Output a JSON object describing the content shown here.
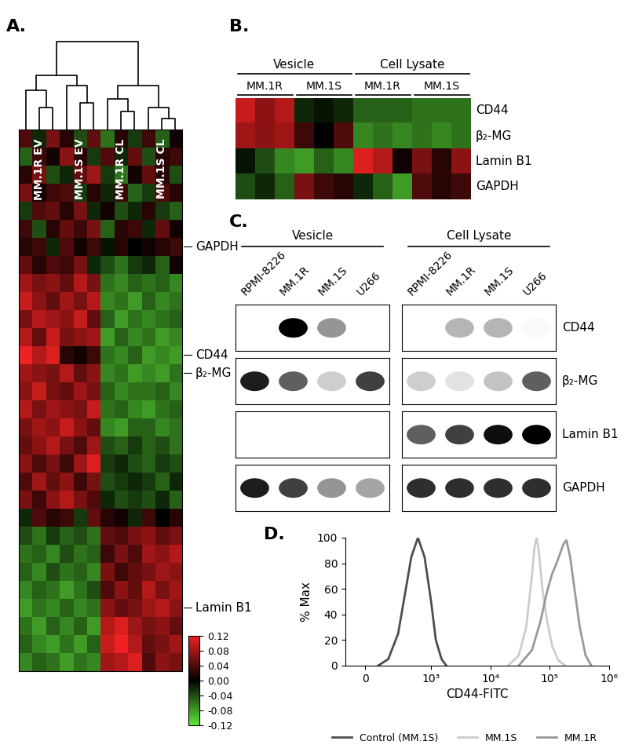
{
  "chart_data": [
    {
      "type": "heatmap",
      "title": "A.",
      "column_groups": [
        {
          "name": "MM.1R EV",
          "columns": 3
        },
        {
          "name": "MM.1S EV",
          "columns": 3
        },
        {
          "name": "MM.1R CL",
          "columns": 3
        },
        {
          "name": "MM.1S CL",
          "columns": 3
        }
      ],
      "row_labels": [
        null,
        null,
        null,
        null,
        null,
        null,
        "GAPDH",
        null,
        null,
        null,
        null,
        null,
        "CD44",
        "β₂-MG",
        null,
        null,
        null,
        null,
        null,
        null,
        null,
        null,
        null,
        null,
        null,
        null,
        "Lamin B1",
        null,
        null,
        null
      ],
      "cells": [
        [
          0.04,
          -0.02,
          0.06,
          0.02,
          -0.04,
          0.05,
          -0.06,
          0.02,
          -0.03,
          0.03,
          -0.05,
          0.01
        ],
        [
          -0.05,
          0.03,
          0.01,
          0.07,
          0.02,
          -0.03,
          0.04,
          -0.02,
          0.05,
          -0.04,
          0.02,
          0.03
        ],
        [
          0.02,
          0.06,
          -0.04,
          -0.02,
          0.05,
          0.08,
          -0.03,
          -0.06,
          0.01,
          0.05,
          0.02,
          -0.04
        ],
        [
          0.06,
          0.01,
          0.03,
          0.04,
          -0.03,
          0.02,
          -0.02,
          0.03,
          -0.05,
          -0.03,
          0.04,
          0.02
        ],
        [
          -0.03,
          0.04,
          0.05,
          0.02,
          0.06,
          -0.02,
          0.01,
          -0.04,
          -0.02,
          0.02,
          -0.03,
          -0.05
        ],
        [
          0.03,
          -0.04,
          0.02,
          0.05,
          0.03,
          0.06,
          -0.05,
          0.02,
          0.03,
          -0.02,
          0.05,
          0.01
        ],
        [
          0.02,
          0.03,
          -0.02,
          0.04,
          0.01,
          0.03,
          -0.01,
          0.02,
          0.0,
          0.01,
          0.02,
          0.03
        ],
        [
          0.05,
          0.02,
          0.04,
          0.03,
          0.06,
          -0.02,
          -0.04,
          -0.06,
          -0.03,
          -0.02,
          -0.05,
          0.01
        ],
        [
          0.08,
          0.06,
          0.07,
          0.05,
          0.09,
          0.06,
          -0.06,
          -0.07,
          -0.05,
          -0.06,
          -0.05,
          -0.07
        ],
        [
          0.1,
          0.07,
          0.05,
          0.08,
          0.06,
          0.09,
          -0.07,
          -0.06,
          -0.08,
          -0.05,
          -0.07,
          -0.06
        ],
        [
          0.06,
          0.09,
          0.08,
          0.07,
          0.1,
          0.05,
          -0.05,
          -0.08,
          -0.06,
          -0.07,
          -0.06,
          -0.05
        ],
        [
          0.09,
          0.05,
          0.1,
          0.06,
          0.07,
          0.08,
          -0.08,
          -0.05,
          -0.07,
          -0.06,
          -0.08,
          -0.07
        ],
        [
          0.12,
          0.09,
          0.11,
          0.02,
          0.01,
          0.03,
          -0.06,
          -0.07,
          -0.05,
          -0.08,
          -0.07,
          -0.08
        ],
        [
          0.08,
          0.07,
          0.06,
          0.09,
          0.05,
          0.07,
          -0.07,
          -0.06,
          -0.08,
          -0.07,
          -0.08,
          -0.06
        ],
        [
          0.07,
          0.1,
          0.06,
          0.05,
          0.08,
          0.06,
          -0.05,
          -0.07,
          -0.06,
          -0.06,
          -0.05,
          -0.07
        ],
        [
          0.09,
          0.06,
          0.08,
          0.07,
          0.06,
          0.1,
          -0.06,
          -0.05,
          -0.07,
          -0.08,
          -0.06,
          -0.05
        ],
        [
          0.06,
          0.08,
          0.07,
          0.1,
          0.07,
          0.05,
          -0.07,
          -0.08,
          -0.05,
          -0.05,
          -0.07,
          -0.06
        ],
        [
          0.05,
          0.07,
          0.09,
          0.06,
          0.04,
          0.08,
          -0.04,
          -0.05,
          -0.03,
          -0.05,
          -0.04,
          -0.06
        ],
        [
          0.07,
          0.04,
          0.06,
          0.03,
          0.08,
          0.11,
          -0.03,
          -0.02,
          -0.04,
          -0.05,
          -0.03,
          -0.04
        ],
        [
          0.04,
          0.08,
          0.05,
          0.07,
          0.03,
          0.06,
          -0.04,
          -0.03,
          -0.02,
          -0.03,
          -0.05,
          -0.02
        ],
        [
          0.06,
          0.03,
          0.07,
          0.09,
          0.06,
          0.04,
          -0.02,
          -0.04,
          -0.03,
          -0.04,
          -0.02,
          -0.05
        ],
        [
          -0.02,
          0.04,
          0.02,
          0.03,
          -0.03,
          0.05,
          0.02,
          0.01,
          -0.02,
          0.03,
          0.0,
          0.02
        ],
        [
          -0.04,
          -0.06,
          -0.03,
          -0.05,
          -0.04,
          -0.06,
          0.05,
          0.04,
          0.06,
          0.07,
          0.05,
          0.06
        ],
        [
          -0.06,
          -0.05,
          -0.07,
          -0.04,
          -0.06,
          -0.05,
          0.03,
          0.06,
          0.04,
          0.08,
          0.07,
          0.09
        ],
        [
          -0.05,
          -0.07,
          -0.04,
          -0.06,
          -0.05,
          -0.07,
          0.06,
          0.03,
          0.05,
          0.06,
          0.08,
          0.07
        ],
        [
          -0.07,
          -0.05,
          -0.06,
          -0.08,
          -0.06,
          -0.04,
          0.04,
          0.07,
          0.05,
          0.09,
          0.06,
          0.08
        ],
        [
          -0.08,
          -0.06,
          -0.07,
          -0.05,
          -0.07,
          -0.06,
          0.07,
          0.05,
          0.06,
          0.08,
          0.09,
          0.07
        ],
        [
          -0.06,
          -0.08,
          -0.05,
          -0.07,
          -0.05,
          -0.08,
          0.09,
          0.11,
          0.08,
          0.06,
          0.07,
          0.05
        ],
        [
          -0.05,
          -0.07,
          -0.08,
          -0.06,
          -0.08,
          -0.05,
          0.1,
          0.12,
          0.09,
          0.05,
          0.06,
          0.08
        ],
        [
          -0.07,
          -0.05,
          -0.06,
          -0.08,
          -0.06,
          -0.07,
          0.08,
          0.09,
          0.11,
          0.04,
          0.07,
          0.06
        ]
      ],
      "clim": [
        -0.12,
        0.12
      ],
      "colors": [
        "#5ee83a",
        "#000000",
        "#ee2222"
      ],
      "cbar_ticks": [
        0.12,
        0.08,
        0.04,
        {
          "value": 0,
          "label": "0.00"
        },
        -0.04,
        -0.08,
        -0.12
      ],
      "dendrogram": [
        [
          1,
          2,
          0.25
        ],
        [
          0,
          12,
          0.45
        ],
        [
          4,
          5,
          0.3
        ],
        [
          3,
          14,
          0.5
        ],
        [
          13,
          15,
          0.62
        ],
        [
          10,
          11,
          0.12
        ],
        [
          9,
          17,
          0.25
        ],
        [
          7,
          8,
          0.2
        ],
        [
          6,
          19,
          0.35
        ],
        [
          20,
          18,
          0.5
        ],
        [
          16,
          21,
          1.0
        ]
      ]
    },
    {
      "type": "heatmap",
      "title": "B.",
      "groups": [
        {
          "name": "Vesicle",
          "subgroups": [
            {
              "name": "MM.1R",
              "columns": 3
            },
            {
              "name": "MM.1S",
              "columns": 3
            }
          ]
        },
        {
          "name": "Cell Lysate",
          "subgroups": [
            {
              "name": "MM.1R",
              "columns": 3
            },
            {
              "name": "MM.1S",
              "columns": 3
            }
          ]
        }
      ],
      "row_labels": [
        "CD44",
        "β₂-MG",
        "Lamin B1",
        "GAPDH"
      ],
      "cells": [
        [
          0.1,
          0.07,
          0.09,
          -0.02,
          -0.01,
          -0.02,
          -0.05,
          -0.05,
          -0.05,
          -0.06,
          -0.06,
          -0.06
        ],
        [
          0.08,
          0.07,
          0.08,
          0.03,
          0.0,
          0.04,
          -0.07,
          -0.06,
          -0.07,
          -0.06,
          -0.07,
          -0.06
        ],
        [
          -0.01,
          -0.04,
          -0.07,
          -0.08,
          -0.05,
          -0.07,
          0.11,
          0.09,
          0.01,
          0.06,
          0.02,
          0.07
        ],
        [
          -0.04,
          -0.02,
          -0.05,
          0.06,
          0.03,
          0.02,
          -0.02,
          -0.05,
          -0.08,
          0.04,
          0.02,
          0.03
        ]
      ],
      "clim": [
        -0.12,
        0.12
      ],
      "colors": [
        "#5ee83a",
        "#000000",
        "#ee2222"
      ]
    },
    {
      "type": "blot",
      "title": "C.",
      "lanes": [
        "RPMI-8226",
        "MM.1R",
        "MM.1S",
        "U266"
      ],
      "row_labels": [
        "CD44",
        "β₂-MG",
        "Lamin B1",
        "GAPDH"
      ],
      "panels": [
        {
          "name": "Vesicle",
          "rows": [
            [
              0,
              1.0,
              0.5,
              0
            ],
            [
              0.9,
              0.7,
              0.3,
              0.8
            ],
            [
              0,
              0,
              0,
              0
            ],
            [
              0.9,
              0.8,
              0.5,
              0.45
            ]
          ]
        },
        {
          "name": "Cell Lysate",
          "rows": [
            [
              0,
              0.4,
              0.4,
              0.05
            ],
            [
              0.3,
              0.2,
              0.35,
              0.7
            ],
            [
              0.7,
              0.8,
              0.95,
              1.0
            ],
            [
              0.85,
              0.85,
              0.85,
              0.85
            ]
          ]
        }
      ]
    },
    {
      "type": "line",
      "title": "D.",
      "xlabel": "CD44-FITC",
      "ylabel": "% Max",
      "log": "x",
      "grid": false,
      "legend": "lower center",
      "xlim": [
        -300,
        1000000
      ],
      "xticks": [
        0,
        {
          "value": 1000,
          "label": "10³"
        },
        {
          "value": 10000,
          "label": "10⁴"
        },
        {
          "value": 100000,
          "label": "10⁵"
        },
        {
          "value": 1000000,
          "label": "10⁶"
        }
      ],
      "ylim": [
        0,
        100
      ],
      "yticks": [
        0,
        20,
        40,
        60,
        80,
        100
      ],
      "series": [
        {
          "name": "Control (MM.1S)",
          "color": "#4d4d4d",
          "x": [
            200,
            350,
            500,
            600,
            700,
            800,
            900,
            1000,
            1200,
            1500,
            1800
          ],
          "values": [
            0,
            5,
            25,
            55,
            85,
            100,
            85,
            50,
            20,
            5,
            0
          ]
        },
        {
          "name": "MM.1S",
          "color": "#cccccc",
          "x": [
            20000,
            30000,
            40000,
            50000,
            55000,
            60000,
            65000,
            75000,
            90000,
            110000,
            140000,
            180000
          ],
          "values": [
            0,
            8,
            30,
            70,
            92,
            100,
            90,
            60,
            35,
            15,
            4,
            0
          ]
        },
        {
          "name": "MM.1R",
          "color": "#999999",
          "x": [
            30000,
            50000,
            70000,
            90000,
            110000,
            130000,
            150000,
            170000,
            190000,
            220000,
            260000,
            320000,
            400000,
            500000
          ],
          "values": [
            0,
            12,
            35,
            58,
            72,
            80,
            88,
            95,
            98,
            85,
            60,
            30,
            8,
            0
          ]
        }
      ]
    }
  ]
}
